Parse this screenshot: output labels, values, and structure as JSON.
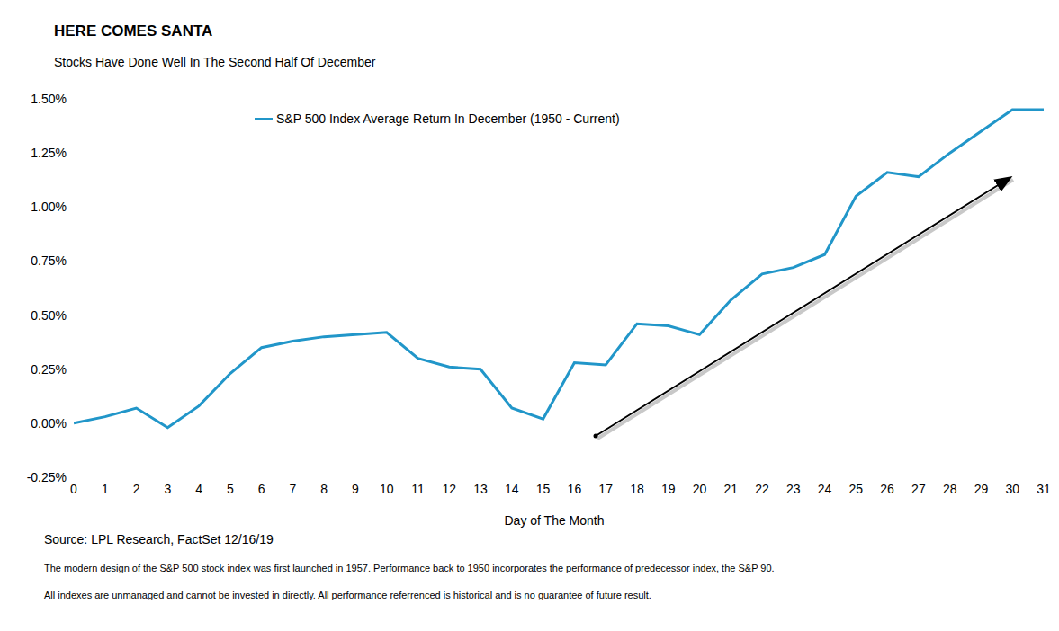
{
  "chart_data": {
    "type": "line",
    "title": "HERE COMES SANTA",
    "subtitle": "Stocks Have Done Well In The Second Half Of December",
    "x_label": "Day of The Month",
    "source": "Source: LPL Research, FactSet 12/16/19",
    "notes": [
      "The modern design of the S&P 500 stock index was first launched in 1957. Performance back to 1950 incorporates the performance of predecessor index, the S&P 90.",
      "All indexes are unmanaged and cannot be invested in directly. All performance referrenced is historical and is no guarantee of future result."
    ],
    "x": [
      0,
      1,
      2,
      3,
      4,
      5,
      6,
      7,
      8,
      9,
      10,
      11,
      12,
      13,
      14,
      15,
      16,
      17,
      18,
      19,
      20,
      21,
      22,
      23,
      24,
      25,
      26,
      27,
      28,
      29,
      30,
      31
    ],
    "series": [
      {
        "name": "S&P 500 Index Average Return In December (1950 - Current)",
        "color": "#2196c9",
        "values": [
          0.0,
          0.03,
          0.07,
          -0.02,
          0.08,
          0.23,
          0.35,
          0.38,
          0.4,
          0.41,
          0.42,
          0.3,
          0.26,
          0.25,
          0.07,
          0.02,
          0.28,
          0.27,
          0.46,
          0.45,
          0.41,
          0.57,
          0.69,
          0.72,
          0.78,
          1.05,
          1.16,
          1.14,
          1.25,
          1.35,
          1.45,
          1.45
        ]
      }
    ],
    "xlim": [
      0,
      31
    ],
    "xticks": [
      0,
      1,
      2,
      3,
      4,
      5,
      6,
      7,
      8,
      9,
      10,
      11,
      12,
      13,
      14,
      15,
      16,
      17,
      18,
      19,
      20,
      21,
      22,
      23,
      24,
      25,
      26,
      27,
      28,
      29,
      30,
      31
    ],
    "ylim": [
      -0.25,
      1.5
    ],
    "yticks": [
      {
        "value": -0.25,
        "label": "-0.25%"
      },
      {
        "value": 0,
        "label": "0.00%"
      },
      {
        "value": 0.25,
        "label": "0.25%"
      },
      {
        "value": 0.5,
        "label": "0.50%"
      },
      {
        "value": 0.75,
        "label": "0.75%"
      },
      {
        "value": 1,
        "label": "1.00%"
      },
      {
        "value": 1.25,
        "label": "1.25%"
      },
      {
        "value": 1.5,
        "label": "1.50%"
      }
    ],
    "grid": false,
    "legend": "top"
  }
}
